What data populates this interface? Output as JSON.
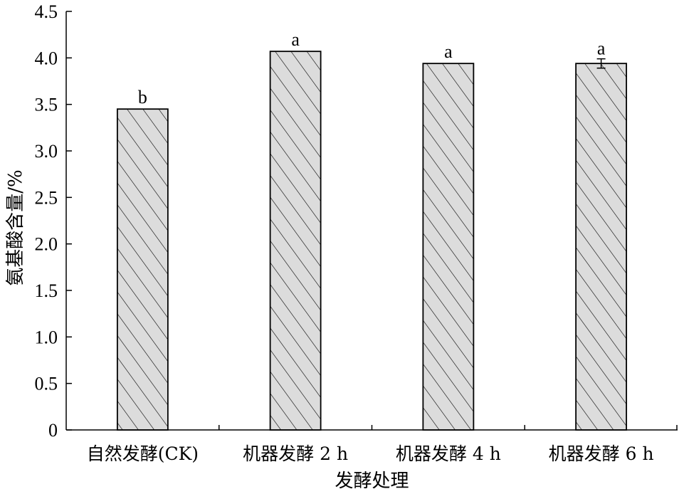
{
  "chart_data": {
    "type": "bar",
    "title": "",
    "xlabel": "发酵处理",
    "ylabel": "氨基酸含量/%",
    "ylim": [
      0,
      4.5
    ],
    "yticks": [
      "0",
      "0.5",
      "1.0",
      "1.5",
      "2.0",
      "2.5",
      "3.0",
      "3.5",
      "4.0",
      "4.5"
    ],
    "categories": [
      "自然发酵(CK)",
      "机器发酵 2 h",
      "机器发酵 4 h",
      "机器发酵 6 h"
    ],
    "values": [
      3.45,
      4.07,
      3.94,
      3.94
    ],
    "errors": [
      0,
      0,
      0,
      0.05
    ],
    "significance": [
      "b",
      "a",
      "a",
      "a"
    ],
    "grid": false,
    "legend": "none",
    "bar_fill": "#dcdcdc",
    "bar_pattern": "diagonal-hatch",
    "edge_color": "#000000"
  }
}
